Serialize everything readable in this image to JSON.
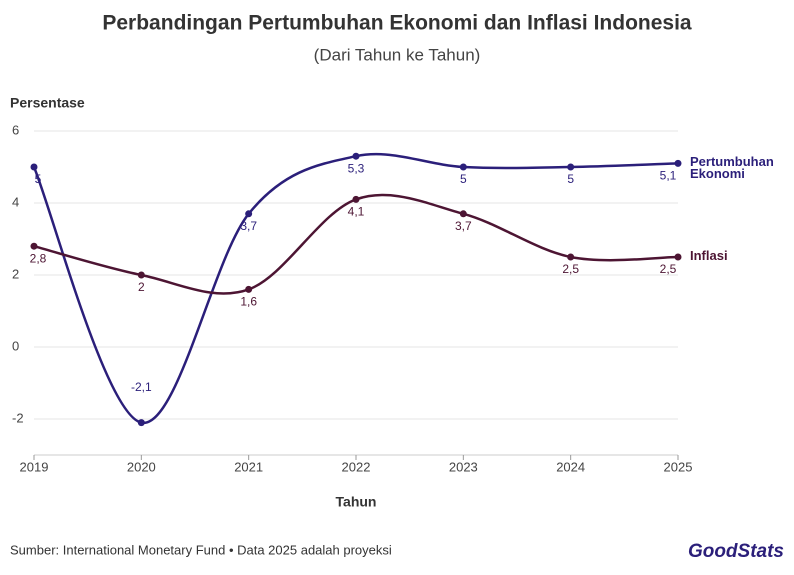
{
  "chart_data": {
    "type": "line",
    "title": "Perbandingan Pertumbuhan Ekonomi dan Inflasi Indonesia",
    "subtitle": "(Dari Tahun ke Tahun)",
    "y_label": "Persentase",
    "x_label": "Tahun",
    "categories": [
      "2019",
      "2020",
      "2021",
      "2022",
      "2023",
      "2024",
      "2025"
    ],
    "series": [
      {
        "name": "Pertumbuhan Ekonomi",
        "color": "#2b1f7a",
        "values": [
          5,
          -2.1,
          3.7,
          5.3,
          5,
          5,
          5.1
        ],
        "value_labels": [
          "5",
          "-2,1",
          "3,7",
          "5,3",
          "5",
          "5",
          "5,1"
        ]
      },
      {
        "name": "Inflasi",
        "color": "#4d1533",
        "values": [
          2.8,
          2,
          1.6,
          4.1,
          3.7,
          2.5,
          2.5
        ],
        "value_labels": [
          "2,8",
          "2",
          "1,6",
          "4,1",
          "3,7",
          "2,5",
          "2,5"
        ]
      }
    ],
    "ylim": [
      -3,
      6.1
    ],
    "yticks": [
      -2,
      0,
      2,
      4,
      6
    ],
    "grid": true
  },
  "footer": {
    "source": "Sumber: International Monetary Fund • Data 2025 adalah proyeksi",
    "logo": "GoodStats"
  }
}
